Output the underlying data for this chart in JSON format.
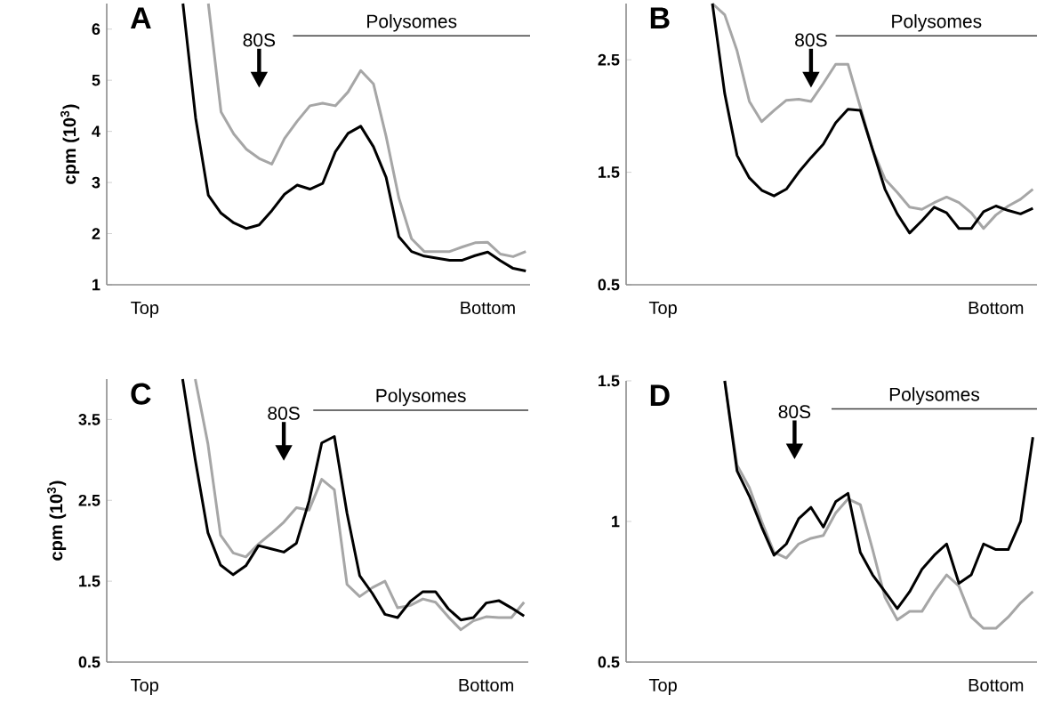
{
  "chart_data": [
    {
      "type": "line",
      "title": "A",
      "ylabel": "cpm (10$^{3}$)",
      "ylim": [
        1,
        6.5
      ],
      "yticks": [
        1,
        2,
        3,
        4,
        5,
        6
      ],
      "categories": [
        null,
        null,
        null,
        "Top",
        null,
        null,
        null,
        null,
        null,
        null,
        null,
        null,
        null,
        null,
        null,
        null,
        null,
        null,
        null,
        null,
        null,
        null,
        null,
        null,
        null,
        null,
        null,
        null,
        null,
        null,
        "Bottom",
        null,
        null,
        null
      ],
      "annotations": [
        "80S",
        "Polysomes"
      ],
      "series": [
        {
          "color": "#a6a6a6",
          "values": [
            null,
            null,
            null,
            null,
            null,
            null,
            null,
            null,
            6.5,
            4.38,
            3.95,
            3.65,
            3.47,
            3.36,
            3.86,
            4.2,
            4.5,
            4.55,
            4.5,
            4.77,
            5.19,
            4.93,
            3.9,
            2.7,
            1.9,
            1.65,
            1.65,
            1.65,
            1.74,
            1.82,
            1.83,
            1.6,
            1.55,
            1.65
          ]
        },
        {
          "color": "#000000",
          "values": [
            null,
            null,
            null,
            null,
            null,
            null,
            6.5,
            4.26,
            2.75,
            2.4,
            2.21,
            2.1,
            2.17,
            2.45,
            2.77,
            2.95,
            2.87,
            2.98,
            3.6,
            3.96,
            4.1,
            3.7,
            3.1,
            1.94,
            1.65,
            1.56,
            1.52,
            1.48,
            1.48,
            1.57,
            1.64,
            1.47,
            1.32,
            1.27
          ]
        }
      ]
    },
    {
      "type": "line",
      "title": "B",
      "ylim": [
        0.5,
        3
      ],
      "yticks": [
        0.5,
        1.5,
        2.5
      ],
      "categories": [
        null,
        null,
        null,
        "Top",
        null,
        null,
        null,
        null,
        null,
        null,
        null,
        null,
        null,
        null,
        null,
        null,
        null,
        null,
        null,
        null,
        null,
        null,
        null,
        null,
        null,
        null,
        null,
        null,
        null,
        null,
        "Bottom",
        null,
        null,
        null
      ],
      "annotations": [
        "80S",
        "Polysomes"
      ],
      "series": [
        {
          "color": "#a6a6a6",
          "values": [
            null,
            null,
            null,
            null,
            null,
            null,
            null,
            3.0,
            2.9,
            2.58,
            2.13,
            1.95,
            2.05,
            2.14,
            2.15,
            2.13,
            2.29,
            2.46,
            2.46,
            2.08,
            1.7,
            1.44,
            1.32,
            1.19,
            1.17,
            1.23,
            1.28,
            1.23,
            1.14,
            1.0,
            1.12,
            1.2,
            1.26,
            1.35
          ]
        },
        {
          "color": "#000000",
          "values": [
            null,
            null,
            null,
            null,
            null,
            null,
            null,
            3.0,
            2.2,
            1.65,
            1.45,
            1.34,
            1.29,
            1.35,
            1.5,
            1.63,
            1.75,
            1.94,
            2.06,
            2.05,
            1.7,
            1.35,
            1.13,
            0.96,
            1.07,
            1.19,
            1.14,
            1.0,
            1.0,
            1.15,
            1.2,
            1.16,
            1.13,
            1.18
          ]
        }
      ]
    },
    {
      "type": "line",
      "title": "C",
      "ylabel": "cpm (10$^{3}$)",
      "ylim": [
        0.5,
        4
      ],
      "yticks": [
        0.5,
        1.5,
        2.5,
        3.5
      ],
      "categories": [
        null,
        null,
        null,
        "Top",
        null,
        null,
        null,
        null,
        null,
        null,
        null,
        null,
        null,
        null,
        null,
        null,
        null,
        null,
        null,
        null,
        null,
        null,
        null,
        null,
        null,
        null,
        null,
        null,
        null,
        null,
        "Bottom",
        null,
        null,
        null
      ],
      "annotations": [
        "80S",
        "Polysomes"
      ],
      "series": [
        {
          "color": "#a6a6a6",
          "values": [
            null,
            null,
            null,
            null,
            null,
            null,
            null,
            4.0,
            3.2,
            2.07,
            1.85,
            1.8,
            1.96,
            2.09,
            2.23,
            2.41,
            2.38,
            2.76,
            2.63,
            1.46,
            1.31,
            1.42,
            1.5,
            1.17,
            1.2,
            1.28,
            1.24,
            1.06,
            0.9,
            1.01,
            1.06,
            1.05,
            1.05,
            1.24
          ]
        },
        {
          "color": "#000000",
          "values": [
            null,
            null,
            null,
            null,
            null,
            null,
            4.0,
            3.0,
            2.1,
            1.7,
            1.58,
            1.69,
            1.94,
            1.9,
            1.86,
            1.97,
            2.49,
            3.21,
            3.29,
            2.34,
            1.57,
            1.35,
            1.09,
            1.05,
            1.25,
            1.37,
            1.37,
            1.16,
            1.02,
            1.05,
            1.23,
            1.26,
            1.17,
            1.07
          ]
        }
      ]
    },
    {
      "type": "line",
      "title": "D",
      "ylim": [
        0.5,
        1.5
      ],
      "yticks": [
        0.5,
        1,
        1.5
      ],
      "categories": [
        null,
        null,
        null,
        "Top",
        null,
        null,
        null,
        null,
        null,
        null,
        null,
        null,
        null,
        null,
        null,
        null,
        null,
        null,
        null,
        null,
        null,
        null,
        null,
        null,
        null,
        null,
        null,
        null,
        null,
        null,
        "Bottom",
        null,
        null,
        null
      ],
      "annotations": [
        "80S",
        "Polysomes"
      ],
      "series": [
        {
          "color": "#a6a6a6",
          "values": [
            null,
            null,
            null,
            null,
            null,
            null,
            null,
            null,
            1.5,
            1.2,
            1.12,
            1.0,
            0.89,
            0.87,
            0.92,
            0.94,
            0.95,
            1.03,
            1.08,
            1.06,
            0.9,
            0.73,
            0.65,
            0.68,
            0.68,
            0.75,
            0.81,
            0.77,
            0.66,
            0.62,
            0.62,
            0.66,
            0.71,
            0.75
          ]
        },
        {
          "color": "#000000",
          "values": [
            null,
            null,
            null,
            null,
            null,
            null,
            null,
            null,
            1.5,
            1.18,
            1.09,
            0.98,
            0.88,
            0.92,
            1.01,
            1.05,
            0.98,
            1.07,
            1.1,
            0.89,
            0.81,
            0.75,
            0.69,
            0.75,
            0.83,
            0.88,
            0.92,
            0.78,
            0.81,
            0.92,
            0.9,
            0.9,
            1.0,
            1.3
          ]
        }
      ]
    }
  ]
}
